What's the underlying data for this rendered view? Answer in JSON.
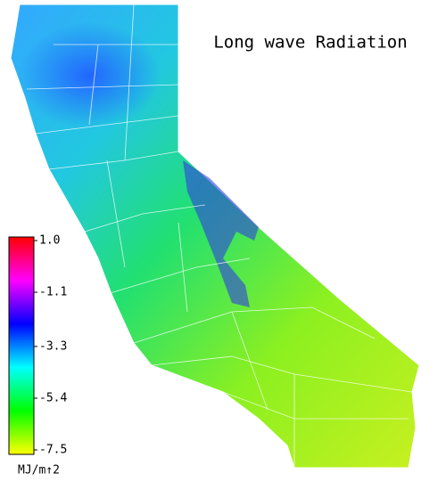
{
  "title": "Long wave Radiation",
  "colorbar": {
    "clim": [
      -7.5,
      1.0
    ],
    "ticks": [
      {
        "value": 1.0,
        "label": "1.0"
      },
      -1.1,
      -3.3,
      -5.4,
      -7.5
    ],
    "colors": [
      "#ffff00",
      "#00ff00",
      "#00ffff",
      "#0000ff",
      "#ff00ff",
      "#ff0000"
    ],
    "unit": "MJ/m↑2"
  }
}
